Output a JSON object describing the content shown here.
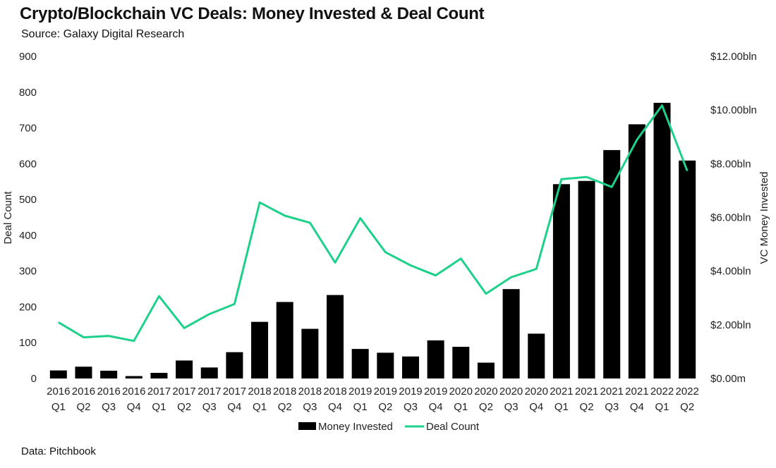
{
  "title": "Crypto/Blockchain VC Deals: Money Invested & Deal Count",
  "subtitle": "Source: Galaxy Digital Research",
  "footer": "Data: Pitchbook",
  "colors": {
    "bar": "#000000",
    "line": "#1dd18b"
  },
  "chart_data": {
    "type": "bar+line",
    "categories": [
      [
        "2016",
        "Q1"
      ],
      [
        "2016",
        "Q2"
      ],
      [
        "2016",
        "Q3"
      ],
      [
        "2016",
        "Q4"
      ],
      [
        "2017",
        "Q1"
      ],
      [
        "2017",
        "Q2"
      ],
      [
        "2017",
        "Q3"
      ],
      [
        "2017",
        "Q4"
      ],
      [
        "2018",
        "Q1"
      ],
      [
        "2018",
        "Q2"
      ],
      [
        "2018",
        "Q3"
      ],
      [
        "2018",
        "Q4"
      ],
      [
        "2019",
        "Q1"
      ],
      [
        "2019",
        "Q2"
      ],
      [
        "2019",
        "Q3"
      ],
      [
        "2019",
        "Q4"
      ],
      [
        "2020",
        "Q1"
      ],
      [
        "2020",
        "Q2"
      ],
      [
        "2020",
        "Q3"
      ],
      [
        "2020",
        "Q4"
      ],
      [
        "2021",
        "Q1"
      ],
      [
        "2021",
        "Q2"
      ],
      [
        "2021",
        "Q3"
      ],
      [
        "2021",
        "Q4"
      ],
      [
        "2022",
        "Q1"
      ],
      [
        "2022",
        "Q2"
      ]
    ],
    "series": [
      {
        "name": "Money Invested",
        "type": "bar",
        "axis": "right",
        "unit": "$ bln",
        "values": [
          0.3,
          0.44,
          0.29,
          0.09,
          0.21,
          0.67,
          0.41,
          0.98,
          2.11,
          2.85,
          1.85,
          3.11,
          1.1,
          0.96,
          0.82,
          1.42,
          1.18,
          0.59,
          3.33,
          1.67,
          7.24,
          7.36,
          8.51,
          9.47,
          10.27,
          8.12
        ]
      },
      {
        "name": "Deal Count",
        "type": "line",
        "axis": "left",
        "values": [
          157,
          115,
          119,
          105,
          230,
          141,
          180,
          208,
          492,
          455,
          435,
          324,
          448,
          353,
          316,
          288,
          335,
          237,
          283,
          306,
          557,
          563,
          535,
          667,
          763,
          580
        ]
      }
    ],
    "left_axis": {
      "label": "Deal Count",
      "min": 0,
      "max": 900,
      "ticks": [
        "0",
        "100",
        "200",
        "300",
        "400",
        "500",
        "600",
        "700",
        "800",
        "900"
      ]
    },
    "right_axis": {
      "label": "VC Money Invested",
      "min": 0,
      "max": 12,
      "ticks": [
        "$0.00m",
        "$2.00bln",
        "$4.00bln",
        "$6.00bln",
        "$8.00bln",
        "$10.00bln",
        "$12.00bln"
      ]
    },
    "legend": [
      "Money Invested",
      "Deal Count"
    ],
    "legend_position": "bottom"
  }
}
